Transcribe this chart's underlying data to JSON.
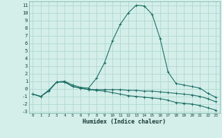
{
  "xlabel": "Humidex (Indice chaleur)",
  "bg_color": "#d4eeea",
  "grid_color": "#b0d8d0",
  "line_color": "#1a6e64",
  "xlim": [
    -0.5,
    23.5
  ],
  "ylim": [
    -3.2,
    11.5
  ],
  "yticks": [
    -3,
    -2,
    -1,
    0,
    1,
    2,
    3,
    4,
    5,
    6,
    7,
    8,
    9,
    10,
    11
  ],
  "xticks": [
    0,
    1,
    2,
    3,
    4,
    5,
    6,
    7,
    8,
    9,
    10,
    11,
    12,
    13,
    14,
    15,
    16,
    17,
    18,
    19,
    20,
    21,
    22,
    23
  ],
  "series1_x": [
    0,
    1,
    2,
    3,
    4,
    5,
    6,
    7,
    8,
    9,
    10,
    11,
    12,
    13,
    14,
    15,
    16,
    17,
    18,
    19,
    20,
    21,
    22,
    23
  ],
  "series1_y": [
    -0.7,
    -1.0,
    -0.3,
    0.9,
    1.0,
    0.5,
    0.2,
    0.1,
    1.4,
    3.4,
    6.3,
    8.5,
    10.0,
    11.0,
    10.9,
    9.8,
    6.6,
    2.2,
    0.7,
    0.5,
    0.3,
    0.1,
    -0.6,
    -1.1
  ],
  "series2_x": [
    0,
    1,
    2,
    3,
    4,
    5,
    6,
    7,
    8,
    9,
    10,
    11,
    12,
    13,
    14,
    15,
    16,
    17,
    18,
    19,
    20,
    21,
    22,
    23
  ],
  "series2_y": [
    -0.7,
    -1.0,
    -0.2,
    0.9,
    0.9,
    0.3,
    0.1,
    -0.1,
    -0.1,
    -0.1,
    -0.1,
    -0.1,
    -0.2,
    -0.2,
    -0.3,
    -0.3,
    -0.4,
    -0.5,
    -0.6,
    -0.7,
    -0.8,
    -1.0,
    -1.3,
    -1.7
  ],
  "series3_x": [
    0,
    1,
    2,
    3,
    4,
    5,
    6,
    7,
    8,
    9,
    10,
    11,
    12,
    13,
    14,
    15,
    16,
    17,
    18,
    19,
    20,
    21,
    22,
    23
  ],
  "series3_y": [
    -0.7,
    -1.0,
    -0.2,
    0.9,
    0.9,
    0.3,
    0.1,
    -0.1,
    -0.2,
    -0.3,
    -0.5,
    -0.7,
    -0.9,
    -1.0,
    -1.1,
    -1.2,
    -1.3,
    -1.5,
    -1.8,
    -1.9,
    -2.0,
    -2.2,
    -2.5,
    -2.8
  ]
}
